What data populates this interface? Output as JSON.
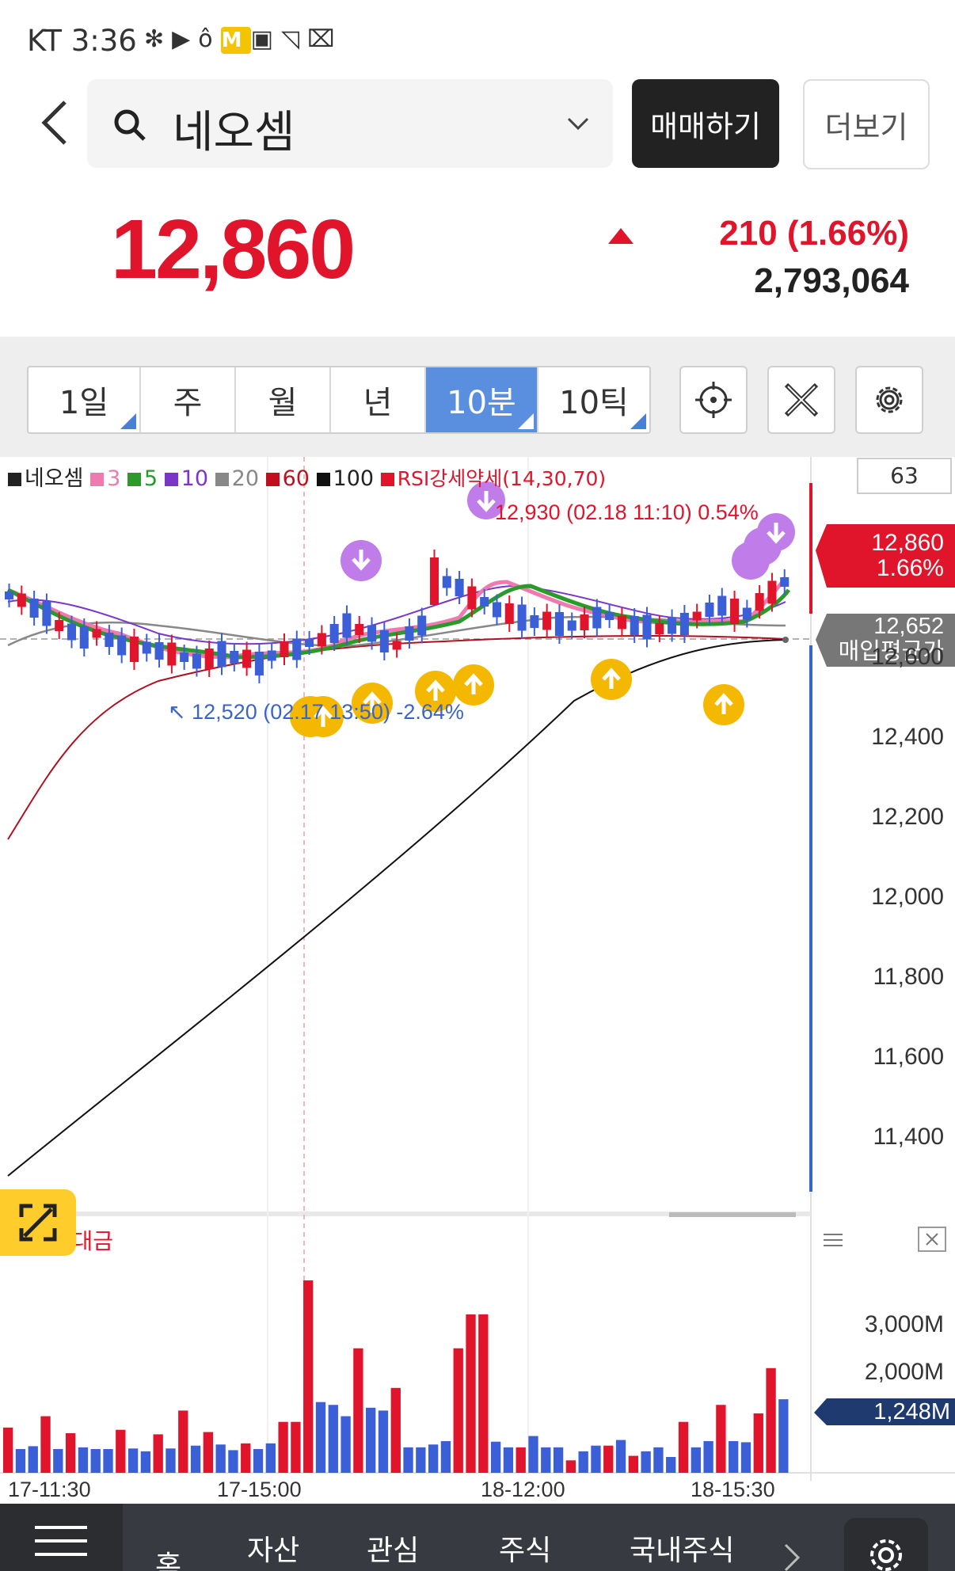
{
  "status_bar": {
    "carrier_time": "KT 3:36",
    "m_badge": "M"
  },
  "header": {
    "search_value": "네오셈",
    "trade_button": "매매하기",
    "more_button": "더보기"
  },
  "quote": {
    "price": "12,860",
    "change": "210 (1.66%)",
    "volume": "2,793,064",
    "direction": "up",
    "up_color": "#e0142b"
  },
  "period_tabs": [
    {
      "label": "1일",
      "active": false
    },
    {
      "label": "주",
      "active": false
    },
    {
      "label": "월",
      "active": false
    },
    {
      "label": "년",
      "active": false
    },
    {
      "label": "10분",
      "active": true
    },
    {
      "label": "10틱",
      "active": false
    }
  ],
  "tools": [
    "crosshair-icon",
    "drawing-tools-icon",
    "settings-icon"
  ],
  "legend": {
    "stock": "네오셈",
    "ma3": "3",
    "ma5": "5",
    "ma10": "10",
    "ma20": "20",
    "ma60": "60",
    "ma100": "100",
    "rsi": "RSI강세약세(14,30,70)",
    "rsi_value": "63"
  },
  "annotations": {
    "high": "12,930 (02.18 11:10) 0.54%",
    "low": "12,520 (02.17 13:50) -2.64%",
    "current_price": "12,860",
    "current_pct": "1.66%",
    "avg_price": "12,652",
    "avg_label": "매입평균가"
  },
  "chart_data": {
    "type": "candlestick",
    "title": "",
    "price_axis_ticks": [
      "12,600",
      "12,400",
      "12,200",
      "12,000",
      "11,800",
      "11,600",
      "11,400"
    ],
    "x_ticks": [
      "17-11:30",
      "17-15:00",
      "18-12:00",
      "18-15:30"
    ],
    "high": 12930,
    "low": 12520,
    "current": 12860,
    "average_buy_price": 12652,
    "volume_panel": {
      "label": "거래대금",
      "ticks": [
        "3,000M",
        "2,000M"
      ],
      "current": "1,248M",
      "values_millions": [
        800,
        420,
        470,
        1000,
        420,
        700,
        450,
        420,
        420,
        760,
        430,
        380,
        680,
        430,
        1100,
        480,
        720,
        500,
        400,
        520,
        420,
        520,
        900,
        900,
        3400,
        1250,
        1200,
        1000,
        2200,
        1150,
        1100,
        1500,
        450,
        450,
        500,
        560,
        2200,
        2800,
        2800,
        550,
        450,
        450,
        650,
        450,
        450,
        220,
        380,
        480,
        480,
        580,
        300,
        380,
        450,
        280,
        900,
        450,
        560,
        1200,
        560,
        540,
        1050,
        1850,
        1300
      ]
    }
  },
  "bottom_nav": {
    "items": [
      "홈",
      "자산",
      "관심",
      "주식",
      "국내주식"
    ]
  }
}
